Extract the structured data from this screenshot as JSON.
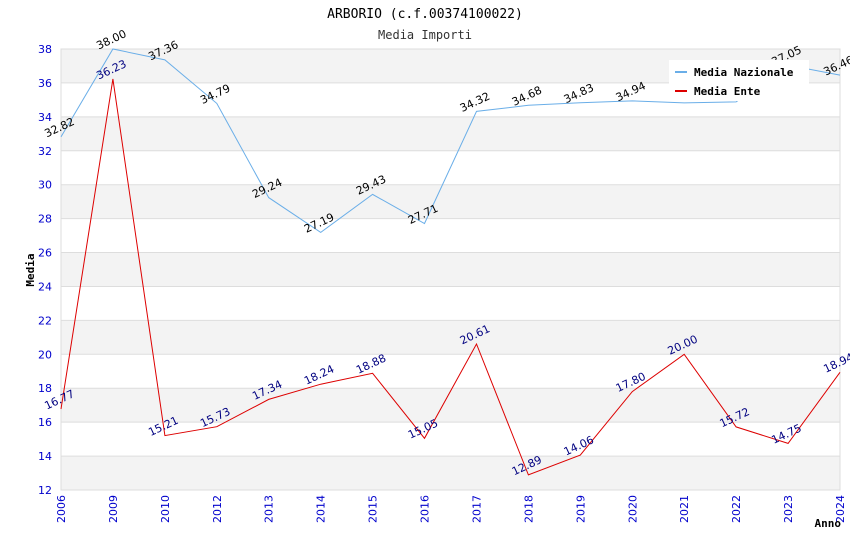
{
  "chart_data": {
    "type": "line",
    "title": "ARBORIO (c.f.00374100022)",
    "subtitle": "Media Importi",
    "xlabel": "Anno",
    "ylabel": "Media",
    "ylim": [
      12,
      38
    ],
    "yticks": [
      "12",
      "14",
      "16",
      "18",
      "20",
      "22",
      "24",
      "26",
      "28",
      "30",
      "32",
      "34",
      "36",
      "38"
    ],
    "categories": [
      "2006",
      "2009",
      "2010",
      "2012",
      "2013",
      "2014",
      "2015",
      "2016",
      "2017",
      "2018",
      "2019",
      "2020",
      "2021",
      "2022",
      "2023",
      "2024"
    ],
    "legend_position": "top-right",
    "series": [
      {
        "name": "Media Nazionale",
        "color": "#6aaee8",
        "values": [
          32.82,
          38.0,
          37.36,
          34.79,
          29.24,
          27.19,
          29.43,
          27.71,
          34.32,
          34.68,
          34.83,
          34.94,
          34.82,
          34.88,
          37.05,
          36.46
        ],
        "labels": [
          "32.82",
          "38.00",
          "37.36",
          "34.79",
          "29.24",
          "27.19",
          "29.43",
          "27.71",
          "34.32",
          "34.68",
          "34.83",
          "34.94",
          "",
          "",
          "37.05",
          "36.46"
        ]
      },
      {
        "name": "Media Ente",
        "color": "#dd0000",
        "values": [
          16.77,
          36.23,
          15.21,
          15.73,
          17.34,
          18.24,
          18.88,
          15.05,
          20.61,
          12.89,
          14.06,
          17.8,
          20.0,
          15.72,
          14.75,
          18.94
        ],
        "labels": [
          "16.77",
          "36.23",
          "15.21",
          "15.73",
          "17.34",
          "18.24",
          "18.88",
          "15.05",
          "20.61",
          "12.89",
          "14.06",
          "17.80",
          "20.00",
          "15.72",
          "14.75",
          "18.94"
        ]
      }
    ]
  }
}
